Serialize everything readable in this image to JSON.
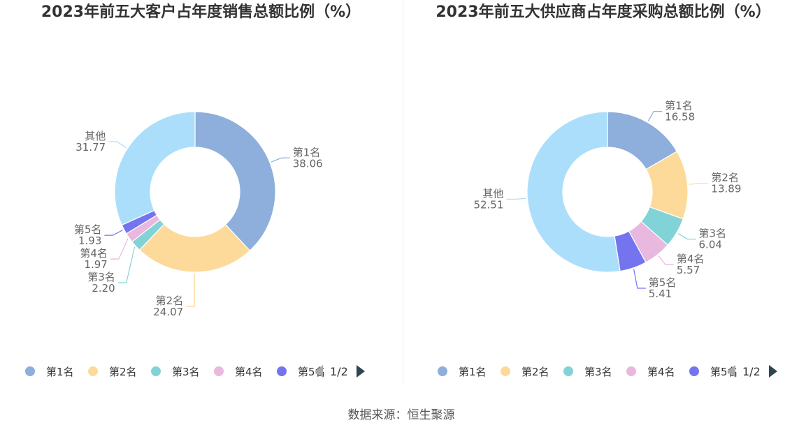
{
  "source": "数据来源：恒生聚源",
  "legend_pager": "1/2",
  "colors": {
    "第1名": "#8eaedb",
    "第2名": "#fdd99a",
    "第3名": "#82d3d8",
    "第4名": "#e8b8de",
    "第5名": "#7475ee",
    "其他": "#abdefb"
  },
  "chart_data": [
    {
      "type": "pie",
      "variant": "donut",
      "title": "2023年前五大客户占年度销售总额比例（%）",
      "legend": [
        "第1名",
        "第2名",
        "第3名",
        "第4名",
        "第5名"
      ],
      "series": [
        {
          "name": "第1名",
          "value": 38.06,
          "label": "38.06"
        },
        {
          "name": "第2名",
          "value": 24.07,
          "label": "24.07"
        },
        {
          "name": "第3名",
          "value": 2.2,
          "label": "2.20"
        },
        {
          "name": "第4名",
          "value": 1.97,
          "label": "1.97"
        },
        {
          "name": "第5名",
          "value": 1.93,
          "label": "1.93"
        },
        {
          "name": "其他",
          "value": 31.77,
          "label": "31.77"
        }
      ]
    },
    {
      "type": "pie",
      "variant": "donut",
      "title": "2023年前五大供应商占年度采购总额比例（%）",
      "legend": [
        "第1名",
        "第2名",
        "第3名",
        "第4名",
        "第5名"
      ],
      "series": [
        {
          "name": "第1名",
          "value": 16.58,
          "label": "16.58"
        },
        {
          "name": "第2名",
          "value": 13.89,
          "label": "13.89"
        },
        {
          "name": "第3名",
          "value": 6.04,
          "label": "6.04"
        },
        {
          "name": "第4名",
          "value": 5.57,
          "label": "5.57"
        },
        {
          "name": "第5名",
          "value": 5.41,
          "label": "5.41"
        },
        {
          "name": "其他",
          "value": 52.51,
          "label": "52.51"
        }
      ]
    }
  ]
}
